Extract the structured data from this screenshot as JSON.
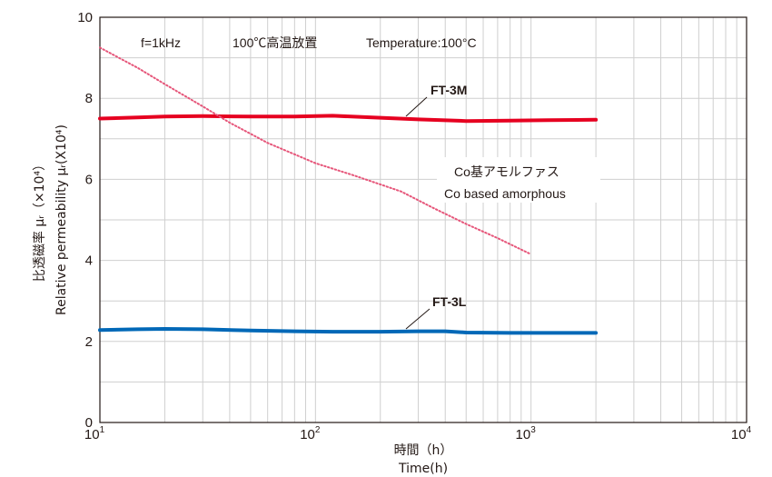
{
  "chart_data": {
    "type": "line",
    "xscale": "log",
    "xlim": [
      10,
      10000
    ],
    "ylim": [
      0,
      10
    ],
    "x_tick_labels": [
      {
        "base": "10",
        "exp": "1",
        "value": 10
      },
      {
        "base": "10",
        "exp": "2",
        "value": 100
      },
      {
        "base": "10",
        "exp": "3",
        "value": 1000
      },
      {
        "base": "10",
        "exp": "4",
        "value": 10000
      }
    ],
    "y_ticks": [
      0,
      2,
      4,
      6,
      8,
      10
    ],
    "ylabel_ja": "比透磁率 μᵣ（×10⁴）",
    "ylabel_en": "Relative permeability μᵣ(X10⁴)",
    "xlabel_ja": "時間（h）",
    "xlabel_en": "Time(h)",
    "annotations": [
      "f=1kHz",
      "100℃高温放置",
      "Temperature:100°C"
    ],
    "grid": true,
    "series": [
      {
        "name": "FT-3M",
        "color": "#e60020",
        "style": "solid",
        "x": [
          10,
          15,
          20,
          30,
          50,
          80,
          120,
          200,
          300,
          500,
          800,
          1200,
          2000
        ],
        "y": [
          7.5,
          7.53,
          7.55,
          7.56,
          7.55,
          7.55,
          7.57,
          7.52,
          7.48,
          7.44,
          7.45,
          7.46,
          7.47
        ]
      },
      {
        "name": "FT-3L",
        "color": "#0068b7",
        "style": "solid",
        "x": [
          10,
          15,
          20,
          30,
          50,
          80,
          120,
          200,
          300,
          400,
          500,
          800,
          1200,
          2000
        ],
        "y": [
          2.28,
          2.3,
          2.31,
          2.3,
          2.27,
          2.25,
          2.24,
          2.24,
          2.25,
          2.25,
          2.22,
          2.21,
          2.21,
          2.21
        ]
      },
      {
        "name_ja": "Co基アモルファス",
        "name": "Co based amorphous",
        "color": "#e6567a",
        "style": "dotted",
        "x": [
          10,
          15,
          20,
          30,
          40,
          60,
          100,
          150,
          250,
          350,
          500,
          700,
          1000
        ],
        "y": [
          9.25,
          8.75,
          8.35,
          7.8,
          7.4,
          6.9,
          6.4,
          6.1,
          5.7,
          5.3,
          4.9,
          4.55,
          4.15
        ]
      }
    ]
  }
}
